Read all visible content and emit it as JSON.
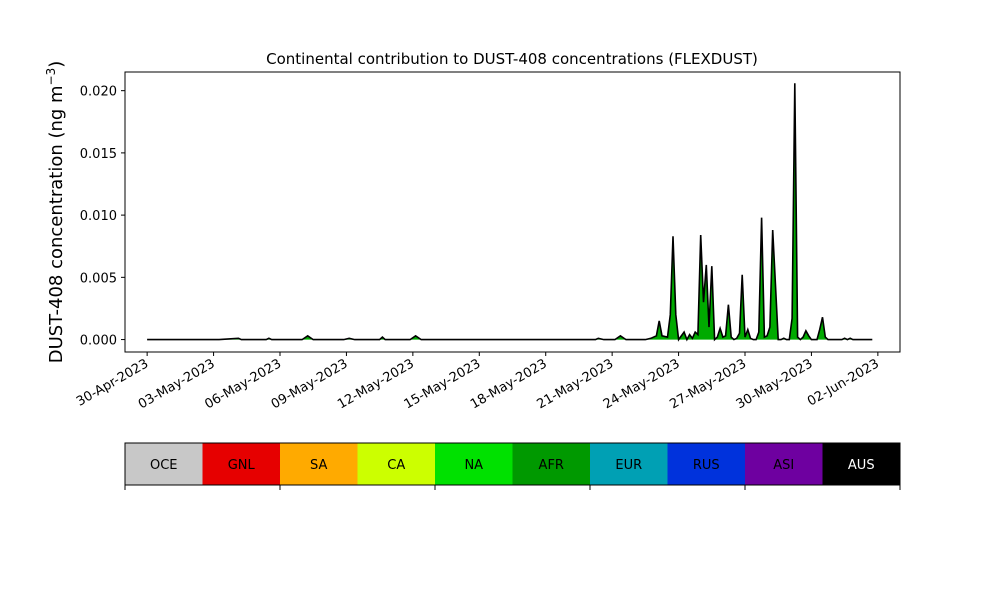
{
  "chart_data": {
    "type": "area",
    "title": "Continental contribution to DUST-408 concentrations (FLEXDUST)",
    "ylabel_main": "DUST-408 concentration (ng m",
    "ylabel_sup": "−3",
    "ylabel_close": ")",
    "xlabel": "",
    "xlim": [
      "2023-04-29",
      "2023-06-03"
    ],
    "ylim": [
      -0.001,
      0.0215
    ],
    "x_ticks": [
      "2023-04-30",
      "2023-05-03",
      "2023-05-06",
      "2023-05-09",
      "2023-05-12",
      "2023-05-15",
      "2023-05-18",
      "2023-05-21",
      "2023-05-24",
      "2023-05-27",
      "2023-05-30",
      "2023-06-02"
    ],
    "x_tick_labels": [
      "30-Apr-2023",
      "03-May-2023",
      "06-May-2023",
      "09-May-2023",
      "12-May-2023",
      "15-May-2023",
      "18-May-2023",
      "21-May-2023",
      "24-May-2023",
      "27-May-2023",
      "30-May-2023",
      "02-Jun-2023"
    ],
    "y_ticks": [
      0,
      0.005,
      0.01,
      0.015,
      0.02
    ],
    "y_tick_labels": [
      "0.000",
      "0.005",
      "0.010",
      "0.015",
      "0.020"
    ],
    "grid": false,
    "series_total": {
      "x": [
        "2023-04-30T00",
        "2023-05-03T06",
        "2023-05-04T03",
        "2023-05-04T06",
        "2023-05-04T09",
        "2023-05-05T09",
        "2023-05-05T12",
        "2023-05-05T15",
        "2023-05-07T00",
        "2023-05-07T06",
        "2023-05-07T12",
        "2023-05-08T21",
        "2023-05-09T03",
        "2023-05-09T09",
        "2023-05-10T12",
        "2023-05-10T15",
        "2023-05-10T18",
        "2023-05-11T21",
        "2023-05-12T03",
        "2023-05-12T09",
        "2023-05-20T06",
        "2023-05-20T09",
        "2023-05-20T15",
        "2023-05-21T03",
        "2023-05-21T09",
        "2023-05-21T15",
        "2023-05-22T12",
        "2023-05-22T18",
        "2023-05-23T00",
        "2023-05-23T03",
        "2023-05-23T06",
        "2023-05-23T12",
        "2023-05-23T15",
        "2023-05-23T18",
        "2023-05-23T21",
        "2023-05-24T00",
        "2023-05-24T06",
        "2023-05-24T09",
        "2023-05-24T12",
        "2023-05-24T15",
        "2023-05-24T18",
        "2023-05-24T21",
        "2023-05-25T00",
        "2023-05-25T03",
        "2023-05-25T06",
        "2023-05-25T09",
        "2023-05-25T12",
        "2023-05-25T15",
        "2023-05-25T18",
        "2023-05-25T21",
        "2023-05-26T00",
        "2023-05-26T03",
        "2023-05-26T06",
        "2023-05-26T09",
        "2023-05-26T12",
        "2023-05-26T15",
        "2023-05-26T18",
        "2023-05-26T21",
        "2023-05-27T00",
        "2023-05-27T03",
        "2023-05-27T06",
        "2023-05-27T09",
        "2023-05-27T12",
        "2023-05-27T15",
        "2023-05-27T18",
        "2023-05-27T21",
        "2023-05-28T00",
        "2023-05-28T03",
        "2023-05-28T06",
        "2023-05-28T09",
        "2023-05-28T12",
        "2023-05-28T15",
        "2023-05-28T18",
        "2023-05-28T21",
        "2023-05-29T00",
        "2023-05-29T03",
        "2023-05-29T06",
        "2023-05-29T09",
        "2023-05-29T12",
        "2023-05-29T15",
        "2023-05-29T18",
        "2023-05-29T21",
        "2023-05-30T00",
        "2023-05-30T03",
        "2023-05-30T06",
        "2023-05-30T09",
        "2023-05-30T12",
        "2023-05-30T15",
        "2023-05-30T18",
        "2023-05-30T21",
        "2023-05-31T00",
        "2023-05-31T03",
        "2023-05-31T06",
        "2023-05-31T09",
        "2023-05-31T12",
        "2023-05-31T15",
        "2023-05-31T18",
        "2023-05-31T21",
        "2023-06-01T00",
        "2023-06-01T03",
        "2023-06-01T06",
        "2023-06-01T09",
        "2023-06-01T12",
        "2023-06-01T18"
      ],
      "values": [
        0,
        0,
        0.0001,
        0,
        0,
        0,
        0.0001,
        0,
        0,
        0.0003,
        0,
        0,
        0.0001,
        0,
        0,
        0.0002,
        0,
        0,
        0.0003,
        0,
        0,
        0.0001,
        0,
        0,
        0.0003,
        0,
        0,
        0.0001,
        0.0003,
        0.0015,
        0.0003,
        0.0002,
        0.002,
        0.0083,
        0.002,
        0,
        0.0006,
        0,
        0.0004,
        0.0001,
        0.0006,
        0.0004,
        0.0084,
        0.003,
        0.006,
        0.001,
        0.0059,
        0,
        0.0002,
        0.0009,
        0.0002,
        0.0003,
        0.0028,
        0.0002,
        0,
        0.0001,
        0.0005,
        0.0052,
        0.0002,
        0.0008,
        0.0001,
        0,
        0,
        0.0006,
        0.0098,
        0.0002,
        0.0003,
        0.001,
        0.0088,
        0.0045,
        0,
        0,
        0.0001,
        0,
        0,
        0.0017,
        0.0206,
        0.0002,
        0,
        0.0002,
        0.0007,
        0.0003,
        0,
        0,
        0,
        0.0008,
        0.0018,
        0.0002,
        0,
        0,
        0,
        0,
        0,
        0,
        0.0001,
        0,
        0.0001,
        0,
        0,
        0,
        0,
        0,
        0,
        0
      ],
      "fill_color": "#00aa00",
      "line_color": "#000000"
    },
    "legend": {
      "placement": "bottom",
      "entries": [
        {
          "label": "OCE",
          "color": "#c8c8c8",
          "text_color": "#000000"
        },
        {
          "label": "GNL",
          "color": "#e60000",
          "text_color": "#000000"
        },
        {
          "label": "SA",
          "color": "#ffaa00",
          "text_color": "#000000"
        },
        {
          "label": "CA",
          "color": "#ccff00",
          "text_color": "#000000"
        },
        {
          "label": "NA",
          "color": "#00e100",
          "text_color": "#000000"
        },
        {
          "label": "AFR",
          "color": "#009900",
          "text_color": "#000000"
        },
        {
          "label": "EUR",
          "color": "#00a0b4",
          "text_color": "#000000"
        },
        {
          "label": "RUS",
          "color": "#0032dc",
          "text_color": "#000000"
        },
        {
          "label": "ASI",
          "color": "#6e00a0",
          "text_color": "#000000"
        },
        {
          "label": "AUS",
          "color": "#000000",
          "text_color": "#ffffff"
        }
      ]
    }
  }
}
